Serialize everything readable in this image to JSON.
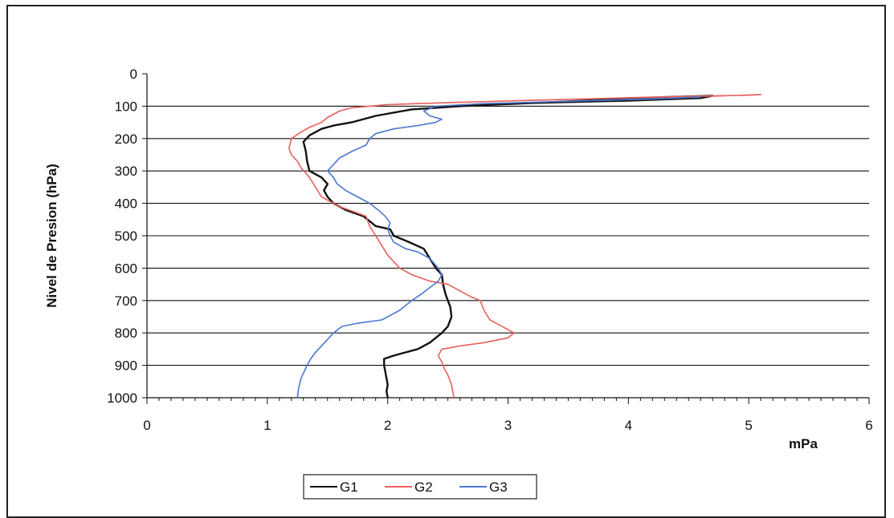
{
  "chart_data": {
    "type": "line",
    "ylabel": "Nivel de Presion (hPa)",
    "xlabel": "mPa",
    "xlim": [
      0,
      6
    ],
    "ylim": [
      0,
      1000
    ],
    "y_inverted": true,
    "x_ticks": [
      "0",
      "1",
      "2",
      "3",
      "4",
      "5",
      "6"
    ],
    "y_ticks": [
      "0",
      "100",
      "200",
      "300",
      "400",
      "500",
      "600",
      "700",
      "800",
      "900",
      "1000"
    ],
    "grid": "horizontal",
    "legend_position": "bottom-left",
    "colors": {
      "G1": "#111111",
      "G2": "#e8605c",
      "G3": "#4a78d0"
    },
    "series": [
      {
        "name": "G1",
        "points": [
          [
            2.0,
            1000
          ],
          [
            1.99,
            980
          ],
          [
            2.0,
            960
          ],
          [
            1.99,
            940
          ],
          [
            1.98,
            920
          ],
          [
            1.97,
            900
          ],
          [
            1.97,
            880
          ],
          [
            2.05,
            870
          ],
          [
            2.15,
            860
          ],
          [
            2.25,
            850
          ],
          [
            2.35,
            830
          ],
          [
            2.45,
            800
          ],
          [
            2.5,
            780
          ],
          [
            2.53,
            750
          ],
          [
            2.52,
            720
          ],
          [
            2.5,
            700
          ],
          [
            2.48,
            680
          ],
          [
            2.46,
            650
          ],
          [
            2.45,
            620
          ],
          [
            2.4,
            600
          ],
          [
            2.35,
            570
          ],
          [
            2.3,
            540
          ],
          [
            2.18,
            520
          ],
          [
            2.05,
            500
          ],
          [
            2.02,
            480
          ],
          [
            1.9,
            470
          ],
          [
            1.8,
            440
          ],
          [
            1.65,
            420
          ],
          [
            1.55,
            400
          ],
          [
            1.5,
            380
          ],
          [
            1.47,
            360
          ],
          [
            1.5,
            340
          ],
          [
            1.45,
            320
          ],
          [
            1.35,
            300
          ],
          [
            1.33,
            270
          ],
          [
            1.32,
            240
          ],
          [
            1.3,
            210
          ],
          [
            1.35,
            190
          ],
          [
            1.45,
            170
          ],
          [
            1.55,
            160
          ],
          [
            1.7,
            150
          ],
          [
            1.9,
            130
          ],
          [
            2.2,
            110
          ],
          [
            2.6,
            100
          ],
          [
            3.2,
            90
          ],
          [
            3.8,
            80
          ],
          [
            4.3,
            72
          ],
          [
            4.7,
            68
          ],
          [
            4.6,
            75
          ],
          [
            4.0,
            83
          ],
          [
            3.2,
            90
          ]
        ]
      },
      {
        "name": "G2",
        "points": [
          [
            2.55,
            1000
          ],
          [
            2.53,
            960
          ],
          [
            2.5,
            930
          ],
          [
            2.47,
            910
          ],
          [
            2.45,
            890
          ],
          [
            2.42,
            870
          ],
          [
            2.45,
            850
          ],
          [
            2.6,
            840
          ],
          [
            2.8,
            830
          ],
          [
            3.0,
            815
          ],
          [
            3.05,
            800
          ],
          [
            2.95,
            780
          ],
          [
            2.85,
            760
          ],
          [
            2.8,
            730
          ],
          [
            2.77,
            700
          ],
          [
            2.7,
            690
          ],
          [
            2.6,
            670
          ],
          [
            2.5,
            650
          ],
          [
            2.35,
            640
          ],
          [
            2.2,
            620
          ],
          [
            2.1,
            600
          ],
          [
            2.0,
            560
          ],
          [
            1.95,
            530
          ],
          [
            1.9,
            500
          ],
          [
            1.85,
            470
          ],
          [
            1.82,
            440
          ],
          [
            1.75,
            430
          ],
          [
            1.6,
            410
          ],
          [
            1.45,
            380
          ],
          [
            1.4,
            350
          ],
          [
            1.35,
            320
          ],
          [
            1.28,
            290
          ],
          [
            1.25,
            270
          ],
          [
            1.2,
            250
          ],
          [
            1.18,
            230
          ],
          [
            1.2,
            200
          ],
          [
            1.28,
            180
          ],
          [
            1.35,
            165
          ],
          [
            1.45,
            150
          ],
          [
            1.5,
            135
          ],
          [
            1.6,
            115
          ],
          [
            1.7,
            105
          ],
          [
            2.0,
            95
          ],
          [
            2.6,
            88
          ],
          [
            3.4,
            80
          ],
          [
            4.2,
            72
          ],
          [
            5.0,
            66
          ],
          [
            5.1,
            64
          ],
          [
            4.8,
            68
          ],
          [
            4.0,
            74
          ],
          [
            3.2,
            82
          ],
          [
            2.4,
            90
          ]
        ]
      },
      {
        "name": "G3",
        "points": [
          [
            1.25,
            1000
          ],
          [
            1.26,
            970
          ],
          [
            1.28,
            940
          ],
          [
            1.33,
            900
          ],
          [
            1.36,
            880
          ],
          [
            1.4,
            860
          ],
          [
            1.45,
            840
          ],
          [
            1.5,
            820
          ],
          [
            1.55,
            800
          ],
          [
            1.62,
            780
          ],
          [
            1.75,
            770
          ],
          [
            1.95,
            760
          ],
          [
            2.1,
            730
          ],
          [
            2.2,
            700
          ],
          [
            2.28,
            680
          ],
          [
            2.35,
            660
          ],
          [
            2.42,
            640
          ],
          [
            2.45,
            620
          ],
          [
            2.42,
            600
          ],
          [
            2.35,
            570
          ],
          [
            2.25,
            550
          ],
          [
            2.15,
            540
          ],
          [
            2.05,
            520
          ],
          [
            2.02,
            500
          ],
          [
            2.0,
            480
          ],
          [
            2.02,
            460
          ],
          [
            1.98,
            440
          ],
          [
            1.92,
            420
          ],
          [
            1.85,
            400
          ],
          [
            1.75,
            380
          ],
          [
            1.65,
            360
          ],
          [
            1.58,
            340
          ],
          [
            1.55,
            320
          ],
          [
            1.5,
            300
          ],
          [
            1.55,
            280
          ],
          [
            1.6,
            260
          ],
          [
            1.7,
            240
          ],
          [
            1.82,
            220
          ],
          [
            1.85,
            200
          ],
          [
            1.9,
            185
          ],
          [
            2.05,
            170
          ],
          [
            2.25,
            160
          ],
          [
            2.4,
            150
          ],
          [
            2.45,
            140
          ],
          [
            2.35,
            130
          ],
          [
            2.3,
            115
          ],
          [
            2.4,
            100
          ],
          [
            2.8,
            92
          ],
          [
            3.5,
            85
          ],
          [
            4.2,
            78
          ],
          [
            4.6,
            72
          ],
          [
            4.3,
            76
          ],
          [
            3.6,
            84
          ],
          [
            2.8,
            92
          ]
        ]
      }
    ]
  }
}
